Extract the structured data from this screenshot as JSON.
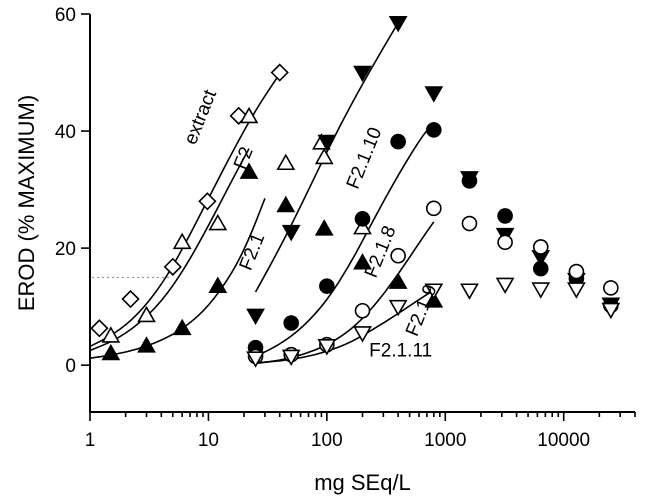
{
  "chart_data": {
    "type": "scatter",
    "title": "",
    "xlabel": "mg SEq/L",
    "ylabel": "EROD (% MAXIMUM)",
    "xscale": "log",
    "xlim": [
      1,
      40000
    ],
    "ylim": [
      -8,
      60
    ],
    "x_ticks": [
      1,
      10,
      100,
      1000,
      10000
    ],
    "x_tick_labels": [
      "1",
      "10",
      "100",
      "1000",
      "10000"
    ],
    "y_ticks": [
      0,
      20,
      40,
      60
    ],
    "y_tick_labels": [
      "0",
      "20",
      "40",
      "60"
    ],
    "grid": false,
    "legend": "none",
    "series": [
      {
        "name": "extract",
        "marker": "diamond-open",
        "label_angle": -68,
        "label_at": [
          9.5,
          42
        ],
        "points": [
          [
            1.2,
            6.3
          ],
          [
            2.2,
            11.3
          ],
          [
            5.0,
            16.8
          ],
          [
            9.8,
            28.0
          ],
          [
            18,
            42.6
          ],
          [
            40,
            50.0
          ]
        ],
        "fit": [
          [
            1,
            3.2
          ],
          [
            1.6,
            5.3
          ],
          [
            2.5,
            8.5
          ],
          [
            4,
            13.6
          ],
          [
            6.3,
            20.5
          ],
          [
            10,
            28.5
          ],
          [
            16,
            36.5
          ],
          [
            25,
            43.6
          ],
          [
            40,
            49.8
          ]
        ]
      },
      {
        "name": "",
        "marker": "triangle-up-open",
        "points": [
          [
            1.5,
            5.0
          ],
          [
            3.0,
            8.5
          ],
          [
            6.0,
            21.0
          ],
          [
            12,
            24.2
          ],
          [
            22,
            42.5
          ],
          [
            45,
            34.5
          ],
          [
            90,
            38.0
          ],
          [
            95,
            35.5
          ],
          [
            200,
            23.5
          ]
        ],
        "fit": [
          [
            1,
            2.5
          ],
          [
            1.6,
            4.2
          ],
          [
            2.5,
            6.8
          ],
          [
            4,
            10.8
          ],
          [
            6.3,
            16.5
          ],
          [
            10,
            23.8
          ],
          [
            16,
            31.8
          ],
          [
            22,
            37.0
          ]
        ]
      },
      {
        "name": "F2",
        "marker": "none",
        "label_angle": -68,
        "label_at": [
          22,
          35
        ],
        "points": [],
        "fit": []
      },
      {
        "name": "F2.1",
        "marker": "triangle-up-filled",
        "label_angle": -68,
        "label_at": [
          26,
          19
        ],
        "points": [
          [
            1.5,
            2.0
          ],
          [
            3.0,
            3.3
          ],
          [
            6.0,
            6.3
          ],
          [
            12,
            13.5
          ],
          [
            22,
            33.0
          ],
          [
            45,
            27.3
          ],
          [
            95,
            23.3
          ],
          [
            200,
            17.5
          ],
          [
            400,
            14.2
          ],
          [
            800,
            11.0
          ]
        ],
        "fit": [
          [
            1,
            1.2
          ],
          [
            1.6,
            1.8
          ],
          [
            2.5,
            2.7
          ],
          [
            4,
            4.2
          ],
          [
            6.3,
            6.4
          ],
          [
            10,
            10.0
          ],
          [
            16,
            15.8
          ],
          [
            22,
            21.5
          ],
          [
            30,
            28.5
          ]
        ]
      },
      {
        "name": "F2.1.10",
        "marker": "triangle-down-filled",
        "label_angle": -68,
        "label_at": [
          230,
          35
        ],
        "points": [
          [
            25,
            8.5
          ],
          [
            50,
            22.8
          ],
          [
            100,
            38.2
          ],
          [
            200,
            50.0
          ],
          [
            400,
            58.5
          ],
          [
            800,
            46.5
          ],
          [
            1600,
            32.0
          ],
          [
            3200,
            22.3
          ],
          [
            6400,
            18.5
          ],
          [
            12800,
            14.6
          ],
          [
            25000,
            10.4
          ]
        ],
        "fit": [
          [
            25,
            12.5
          ],
          [
            40,
            20.0
          ],
          [
            63,
            28.0
          ],
          [
            100,
            36.5
          ],
          [
            160,
            44.5
          ],
          [
            250,
            51.5
          ],
          [
            400,
            58.5
          ]
        ]
      },
      {
        "name": "F2.1.8",
        "marker": "circle-filled",
        "label_angle": -68,
        "label_at": [
          315,
          19
        ],
        "points": [
          [
            25,
            3.0
          ],
          [
            50,
            7.2
          ],
          [
            100,
            13.5
          ],
          [
            200,
            25.0
          ],
          [
            400,
            38.2
          ],
          [
            800,
            40.2
          ],
          [
            1600,
            31.5
          ],
          [
            3200,
            25.5
          ],
          [
            6400,
            16.5
          ],
          [
            12800,
            14.8
          ],
          [
            25000,
            10.2
          ]
        ],
        "fit": [
          [
            25,
            1.5
          ],
          [
            40,
            3.5
          ],
          [
            63,
            6.5
          ],
          [
            100,
            11.0
          ],
          [
            160,
            17.5
          ],
          [
            250,
            25.0
          ],
          [
            400,
            32.5
          ],
          [
            630,
            39.0
          ],
          [
            800,
            41.5
          ]
        ]
      },
      {
        "name": "F2.1.9",
        "marker": "circle-open",
        "label_angle": -68,
        "label_at": [
          700,
          9
        ],
        "points": [
          [
            25,
            1.5
          ],
          [
            50,
            1.8
          ],
          [
            100,
            3.5
          ],
          [
            200,
            9.3
          ],
          [
            400,
            18.7
          ],
          [
            800,
            26.8
          ],
          [
            1600,
            24.2
          ],
          [
            3200,
            21.0
          ],
          [
            6400,
            20.2
          ],
          [
            12800,
            16.0
          ],
          [
            25000,
            13.2
          ]
        ],
        "fit": [
          [
            25,
            0.3
          ],
          [
            40,
            0.8
          ],
          [
            63,
            1.8
          ],
          [
            100,
            3.4
          ],
          [
            160,
            6.0
          ],
          [
            250,
            10.0
          ],
          [
            400,
            15.5
          ],
          [
            630,
            21.5
          ],
          [
            800,
            24.5
          ]
        ]
      },
      {
        "name": "F2.1.11",
        "marker": "triangle-down-open",
        "label_angle": 0,
        "label_at": [
          420,
          1.5
        ],
        "points": [
          [
            25,
            1.2
          ],
          [
            50,
            1.5
          ],
          [
            100,
            3.3
          ],
          [
            200,
            5.5
          ],
          [
            400,
            10.0
          ],
          [
            800,
            12.8
          ],
          [
            1600,
            12.8
          ],
          [
            3200,
            13.8
          ],
          [
            6400,
            13.0
          ],
          [
            12800,
            13.0
          ],
          [
            25000,
            9.5
          ]
        ],
        "fit": [
          [
            25,
            0.4
          ],
          [
            40,
            0.7
          ],
          [
            63,
            1.3
          ],
          [
            100,
            2.3
          ],
          [
            160,
            3.9
          ],
          [
            250,
            6.2
          ],
          [
            400,
            8.8
          ],
          [
            630,
            11.5
          ],
          [
            800,
            12.8
          ]
        ]
      }
    ]
  }
}
